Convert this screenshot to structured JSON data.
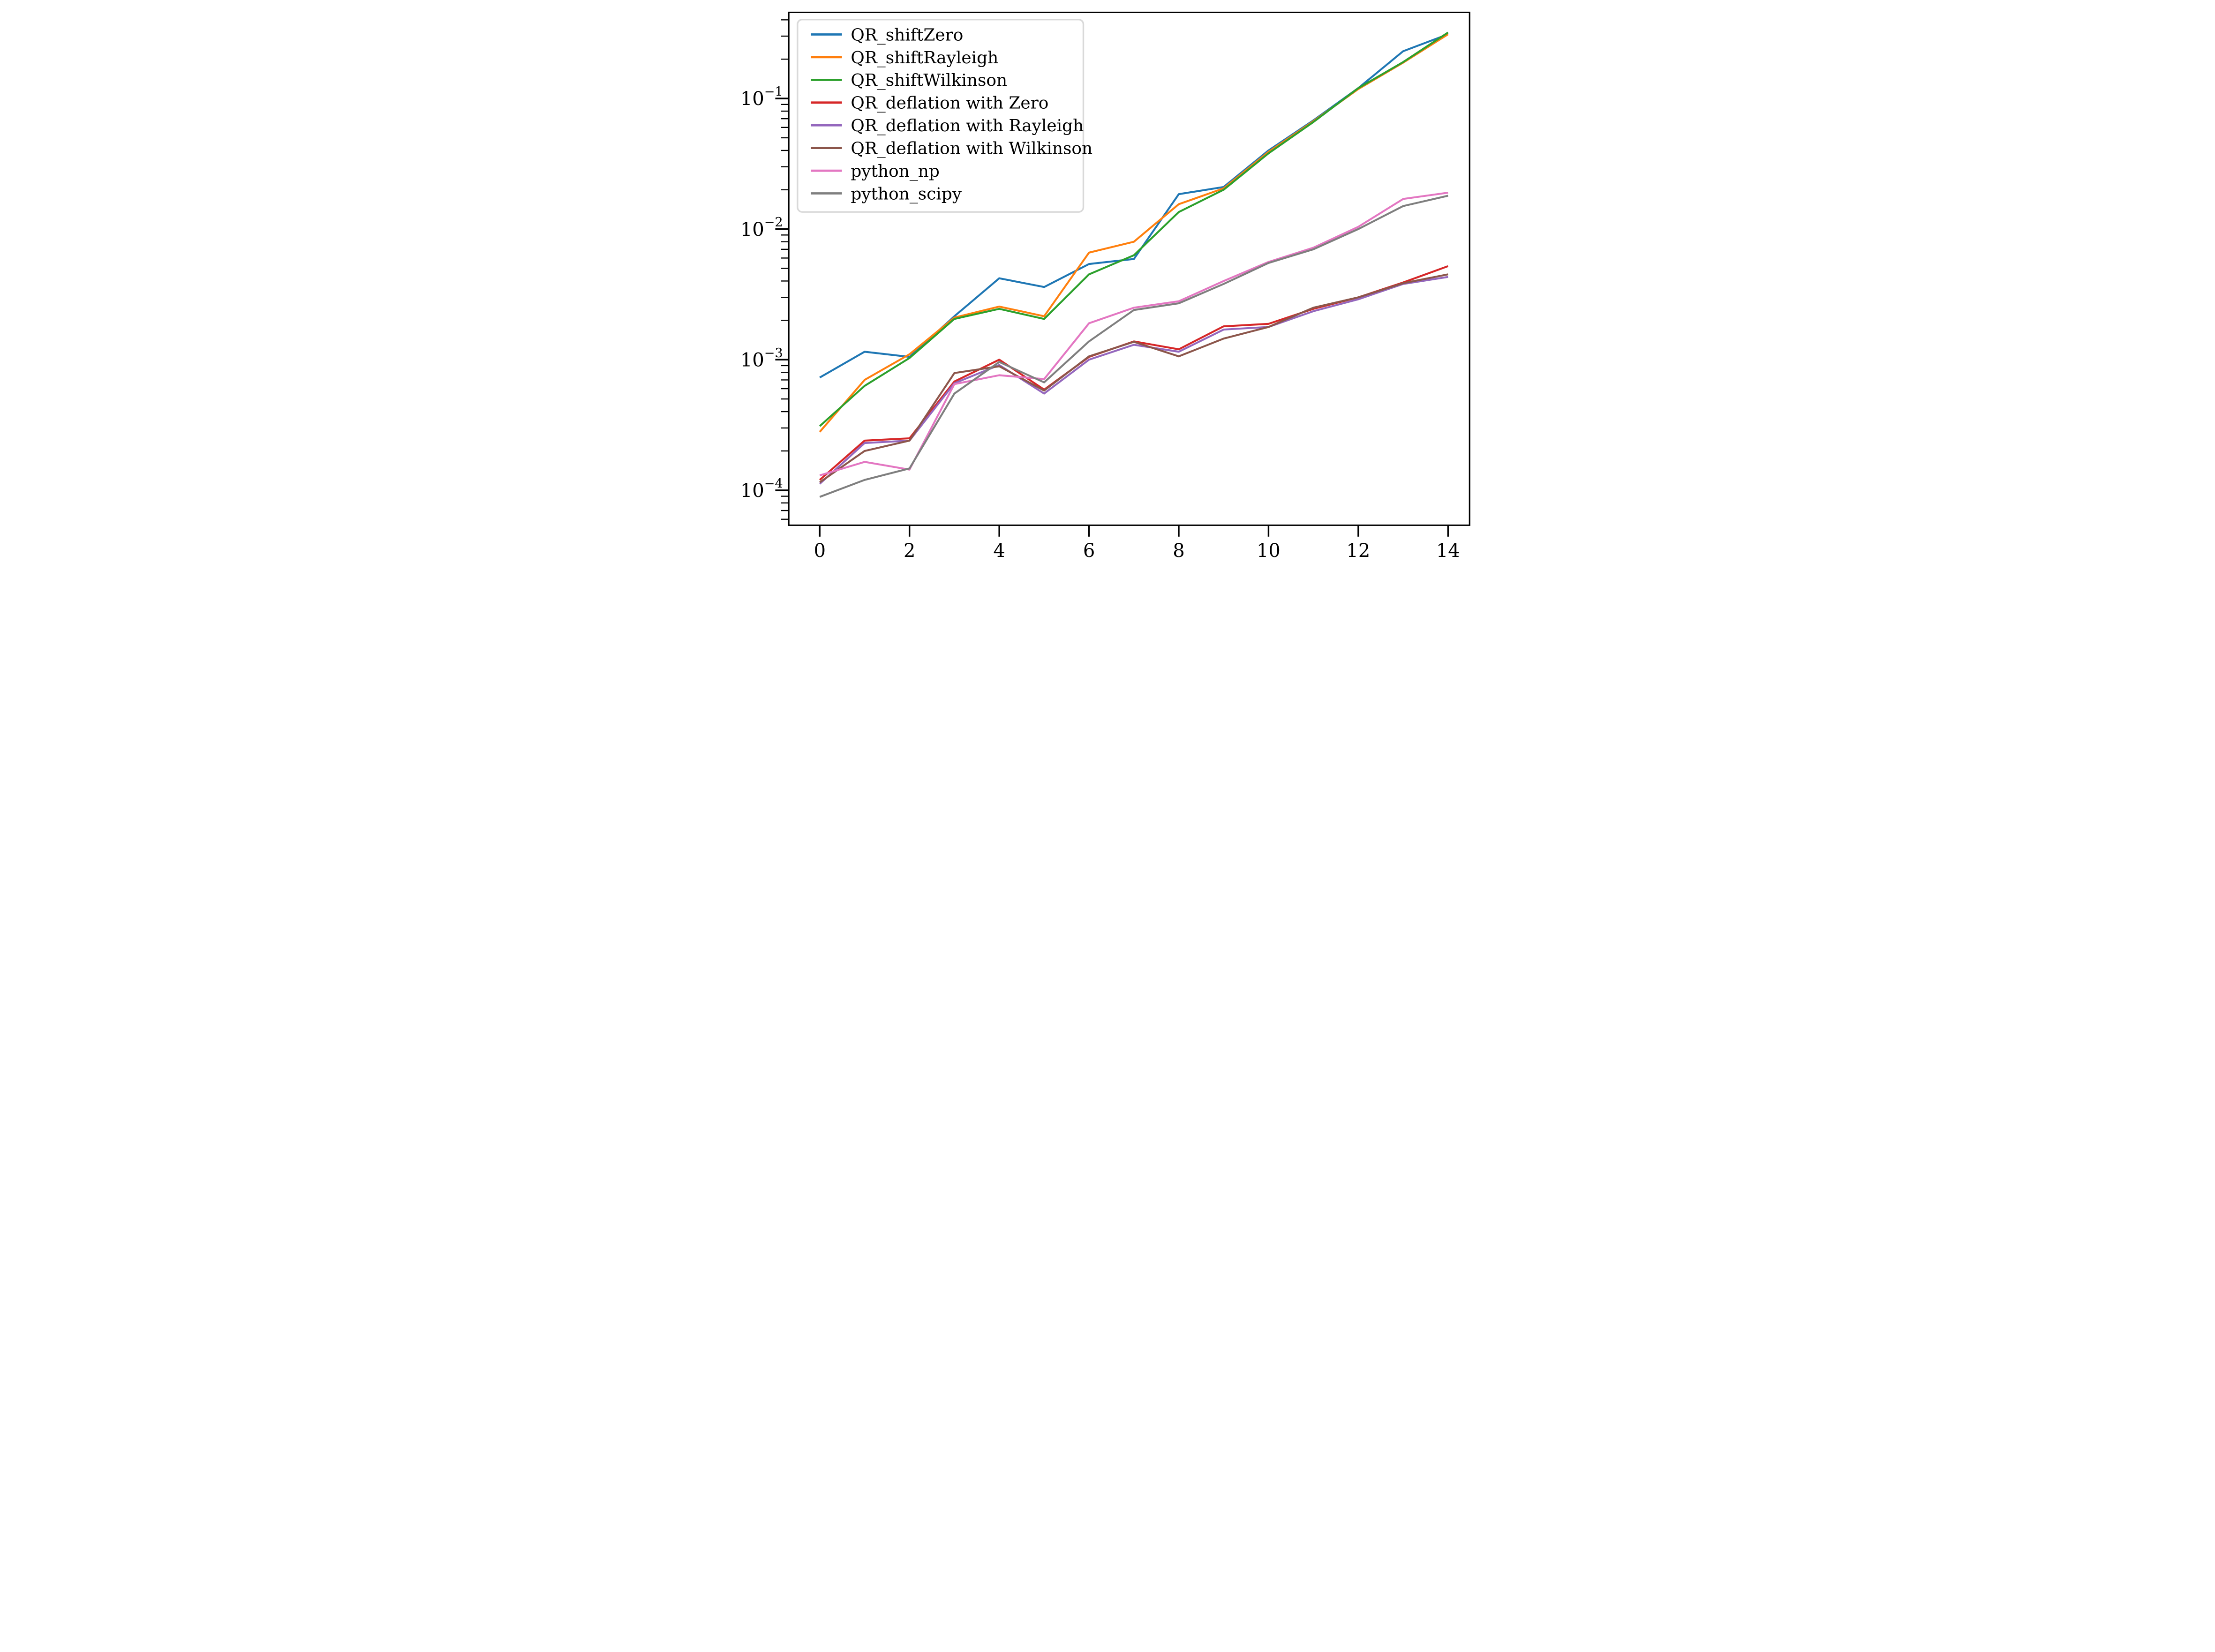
{
  "chart_data": {
    "type": "line",
    "title": "",
    "xlabel": "",
    "ylabel": "",
    "yscale": "log",
    "grid": false,
    "xlim": [
      -0.69,
      14.48
    ],
    "ylim": [
      5.4e-05,
      0.456
    ],
    "x": [
      0,
      1,
      2,
      3,
      4,
      5,
      6,
      7,
      8,
      9,
      10,
      11,
      12,
      13,
      14
    ],
    "series": [
      {
        "name": "QR_shiftZero",
        "color": "#1f77b4",
        "values": [
          0.00073,
          0.00115,
          0.00105,
          0.00215,
          0.0042,
          0.0036,
          0.0054,
          0.0059,
          0.0185,
          0.021,
          0.04,
          0.068,
          0.12,
          0.23,
          0.31
        ]
      },
      {
        "name": "QR_shiftRayleigh",
        "color": "#ff7f0e",
        "values": [
          0.00028,
          0.0007,
          0.0011,
          0.0021,
          0.00255,
          0.00215,
          0.0066,
          0.008,
          0.0155,
          0.0205,
          0.039,
          0.067,
          0.118,
          0.188,
          0.31
        ]
      },
      {
        "name": "QR_shiftWilkinson",
        "color": "#2ca02c",
        "values": [
          0.00031,
          0.00063,
          0.00103,
          0.00205,
          0.00245,
          0.00205,
          0.0045,
          0.0063,
          0.0135,
          0.02,
          0.038,
          0.066,
          0.12,
          0.19,
          0.32
        ]
      },
      {
        "name": "QR_deflation with Zero",
        "color": "#d62728",
        "values": [
          0.00012,
          0.00024,
          0.00025,
          0.00068,
          0.001,
          0.00059,
          0.00105,
          0.00138,
          0.0012,
          0.0018,
          0.00188,
          0.00245,
          0.003,
          0.0039,
          0.0052
        ]
      },
      {
        "name": "QR_deflation with Rayleigh",
        "color": "#9467bd",
        "values": [
          0.000112,
          0.00023,
          0.00024,
          0.00066,
          0.00091,
          0.00055,
          0.001,
          0.0013,
          0.00115,
          0.0017,
          0.00178,
          0.00235,
          0.0029,
          0.0038,
          0.0043
        ]
      },
      {
        "name": "QR_deflation with Wilkinson",
        "color": "#8c564b",
        "values": [
          0.000115,
          0.0002,
          0.00024,
          0.00079,
          0.00089,
          0.00058,
          0.00106,
          0.00137,
          0.00106,
          0.00145,
          0.00178,
          0.0025,
          0.003,
          0.00385,
          0.0045
        ]
      },
      {
        "name": "python_np",
        "color": "#e377c2",
        "values": [
          0.00013,
          0.000165,
          0.000144,
          0.00065,
          0.00076,
          0.00071,
          0.0019,
          0.0025,
          0.0028,
          0.004,
          0.0056,
          0.0072,
          0.0104,
          0.017,
          0.019
        ]
      },
      {
        "name": "python_scipy",
        "color": "#7f7f7f",
        "values": [
          8.9e-05,
          0.00012,
          0.000147,
          0.00055,
          0.00096,
          0.00067,
          0.00138,
          0.0024,
          0.0027,
          0.0038,
          0.0055,
          0.007,
          0.01,
          0.015,
          0.018
        ]
      }
    ],
    "x_ticks": {
      "values": [
        0,
        2,
        4,
        6,
        8,
        10,
        12,
        14
      ],
      "labels": [
        "0",
        "2",
        "4",
        "6",
        "8",
        "10",
        "12",
        "14"
      ]
    },
    "y_ticks": {
      "base": "10",
      "major_exponents": [
        -1,
        -2,
        -3,
        -4
      ],
      "minus_sign": "−"
    },
    "legend": {
      "position": "upper left"
    }
  }
}
